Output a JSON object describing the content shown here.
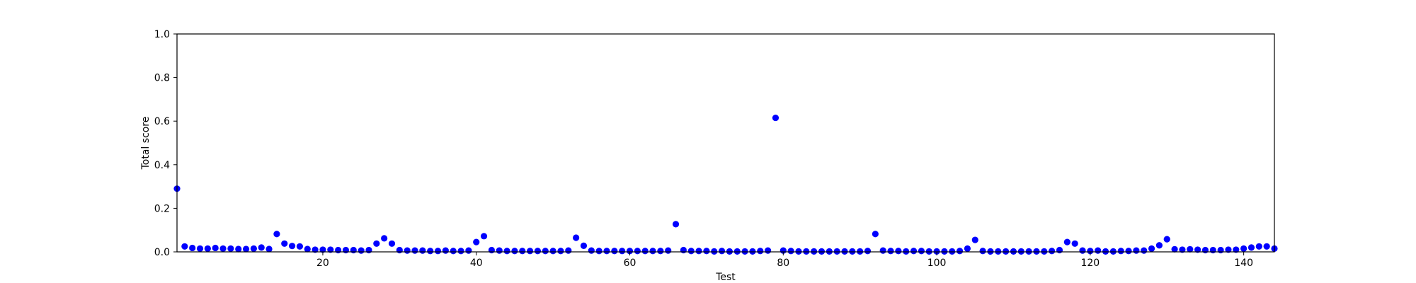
{
  "chart_data": {
    "type": "scatter",
    "xlabel": "Test",
    "ylabel": "Total score",
    "xlim": [
      1,
      144
    ],
    "ylim": [
      0,
      1.0
    ],
    "x_ticks": [
      20,
      40,
      60,
      80,
      100,
      120,
      140
    ],
    "y_ticks": [
      0.0,
      0.2,
      0.4,
      0.6,
      0.8,
      1.0
    ],
    "x_tick_labels": [
      "20",
      "40",
      "60",
      "80",
      "100",
      "120",
      "140"
    ],
    "y_tick_labels": [
      "0.0",
      "0.2",
      "0.4",
      "0.6",
      "0.8",
      "1.0"
    ],
    "grid": false,
    "marker_color": "#0000ff",
    "x": [
      1,
      2,
      3,
      4,
      5,
      6,
      7,
      8,
      9,
      10,
      11,
      12,
      13,
      14,
      15,
      16,
      17,
      18,
      19,
      20,
      21,
      22,
      23,
      24,
      25,
      26,
      27,
      28,
      29,
      30,
      31,
      32,
      33,
      34,
      35,
      36,
      37,
      38,
      39,
      40,
      41,
      42,
      43,
      44,
      45,
      46,
      47,
      48,
      49,
      50,
      51,
      52,
      53,
      54,
      55,
      56,
      57,
      58,
      59,
      60,
      61,
      62,
      63,
      64,
      65,
      66,
      67,
      68,
      69,
      70,
      71,
      72,
      73,
      74,
      75,
      76,
      77,
      78,
      79,
      80,
      81,
      82,
      83,
      84,
      85,
      86,
      87,
      88,
      89,
      90,
      91,
      92,
      93,
      94,
      95,
      96,
      97,
      98,
      99,
      100,
      101,
      102,
      103,
      104,
      105,
      106,
      107,
      108,
      109,
      110,
      111,
      112,
      113,
      114,
      115,
      116,
      117,
      118,
      119,
      120,
      121,
      122,
      123,
      124,
      125,
      126,
      127,
      128,
      129,
      130,
      131,
      132,
      133,
      134,
      135,
      136,
      137,
      138,
      139,
      140,
      141,
      142,
      143,
      144
    ],
    "y": [
      0.29,
      0.025,
      0.018,
      0.015,
      0.015,
      0.018,
      0.015,
      0.015,
      0.013,
      0.013,
      0.015,
      0.02,
      0.013,
      0.082,
      0.038,
      0.027,
      0.025,
      0.013,
      0.01,
      0.01,
      0.01,
      0.008,
      0.008,
      0.008,
      0.006,
      0.008,
      0.038,
      0.062,
      0.038,
      0.008,
      0.006,
      0.006,
      0.006,
      0.004,
      0.004,
      0.006,
      0.004,
      0.004,
      0.006,
      0.045,
      0.072,
      0.008,
      0.006,
      0.004,
      0.004,
      0.004,
      0.004,
      0.004,
      0.004,
      0.004,
      0.004,
      0.006,
      0.065,
      0.028,
      0.006,
      0.004,
      0.004,
      0.004,
      0.004,
      0.004,
      0.004,
      0.004,
      0.004,
      0.004,
      0.006,
      0.127,
      0.008,
      0.004,
      0.004,
      0.004,
      0.002,
      0.004,
      0.002,
      0.002,
      0.002,
      0.002,
      0.004,
      0.006,
      0.615,
      0.006,
      0.004,
      0.002,
      0.002,
      0.002,
      0.002,
      0.002,
      0.002,
      0.002,
      0.002,
      0.002,
      0.004,
      0.082,
      0.006,
      0.004,
      0.004,
      0.002,
      0.004,
      0.004,
      0.002,
      0.002,
      0.002,
      0.002,
      0.004,
      0.015,
      0.055,
      0.004,
      0.002,
      0.002,
      0.002,
      0.002,
      0.002,
      0.002,
      0.002,
      0.002,
      0.004,
      0.008,
      0.045,
      0.038,
      0.006,
      0.004,
      0.006,
      0.002,
      0.002,
      0.004,
      0.004,
      0.006,
      0.006,
      0.015,
      0.03,
      0.058,
      0.012,
      0.01,
      0.012,
      0.01,
      0.008,
      0.008,
      0.008,
      0.01,
      0.01,
      0.015,
      0.02,
      0.025,
      0.025,
      0.015
    ]
  }
}
